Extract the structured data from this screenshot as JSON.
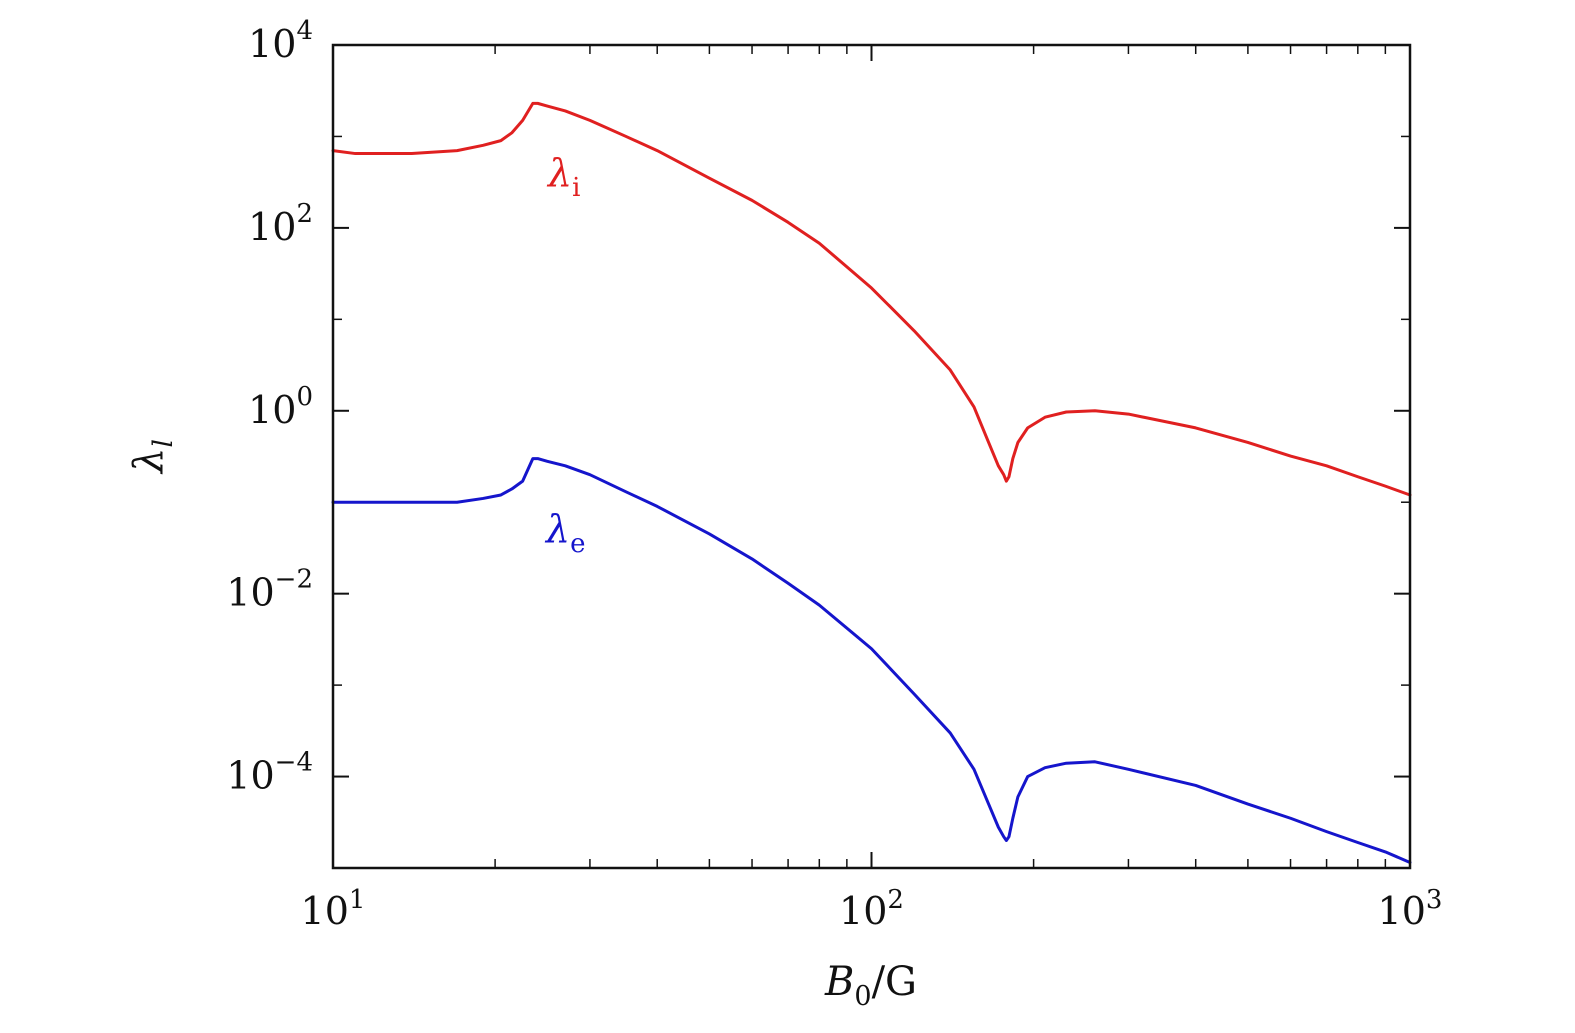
{
  "chart_data": {
    "type": "line",
    "xscale": "log",
    "yscale": "log",
    "xlim": [
      10,
      1000
    ],
    "ylim": [
      1e-05,
      10000
    ],
    "xticks": [
      {
        "value": 10,
        "base": "10",
        "exp": "1"
      },
      {
        "value": 100,
        "base": "10",
        "exp": "2"
      },
      {
        "value": 1000,
        "base": "10",
        "exp": "3"
      }
    ],
    "yticks": [
      {
        "value": 0.0001,
        "base": "10",
        "exp": "−4"
      },
      {
        "value": 0.01,
        "base": "10",
        "exp": "−2"
      },
      {
        "value": 1,
        "base": "10",
        "exp": "0"
      },
      {
        "value": 100,
        "base": "10",
        "exp": "2"
      },
      {
        "value": 10000,
        "base": "10",
        "exp": "4"
      }
    ],
    "xlabel": {
      "main": "B",
      "sub": "0",
      "rest": "/G"
    },
    "ylabel": {
      "main": "λ",
      "sub": "l"
    },
    "grid": false,
    "series": [
      {
        "label_main": "λ",
        "label_sub": "i",
        "color": "#e02020",
        "x": [
          10,
          11,
          14,
          17,
          19,
          20.5,
          21.5,
          22.5,
          23.5,
          24,
          25,
          27,
          30,
          35,
          40,
          50,
          60,
          70,
          80,
          100,
          120,
          140,
          155,
          165,
          172,
          176,
          178,
          180,
          183,
          187,
          195,
          210,
          230,
          260,
          300,
          400,
          500,
          600,
          700,
          800,
          900,
          1000
        ],
        "y": [
          700,
          650,
          650,
          700,
          800,
          900,
          1100,
          1500,
          2300,
          2300,
          2150,
          1900,
          1500,
          1000,
          700,
          350,
          200,
          115,
          68,
          22,
          7.5,
          2.8,
          1.1,
          0.45,
          0.25,
          0.2,
          0.17,
          0.19,
          0.3,
          0.45,
          0.65,
          0.85,
          0.97,
          1.0,
          0.92,
          0.65,
          0.45,
          0.32,
          0.25,
          0.19,
          0.15,
          0.12
        ]
      },
      {
        "label_main": "λ",
        "label_sub": "e",
        "color": "#1515cc",
        "x": [
          10,
          14,
          17,
          19,
          20.5,
          21.5,
          22.5,
          23.5,
          24,
          25,
          27,
          30,
          35,
          40,
          50,
          60,
          70,
          80,
          100,
          120,
          140,
          155,
          165,
          172,
          176,
          178,
          180,
          183,
          187,
          195,
          210,
          230,
          260,
          300,
          400,
          500,
          600,
          700,
          800,
          900,
          1000
        ],
        "y": [
          0.1,
          0.1,
          0.1,
          0.11,
          0.12,
          0.14,
          0.17,
          0.3,
          0.3,
          0.28,
          0.25,
          0.2,
          0.13,
          0.09,
          0.045,
          0.024,
          0.013,
          0.0075,
          0.0025,
          0.0008,
          0.0003,
          0.00012,
          5e-05,
          2.8e-05,
          2.2e-05,
          2e-05,
          2.2e-05,
          3.5e-05,
          6e-05,
          0.0001,
          0.000125,
          0.00014,
          0.000145,
          0.00012,
          8e-05,
          5e-05,
          3.5e-05,
          2.5e-05,
          1.9e-05,
          1.5e-05,
          1.15e-05
        ]
      }
    ]
  }
}
